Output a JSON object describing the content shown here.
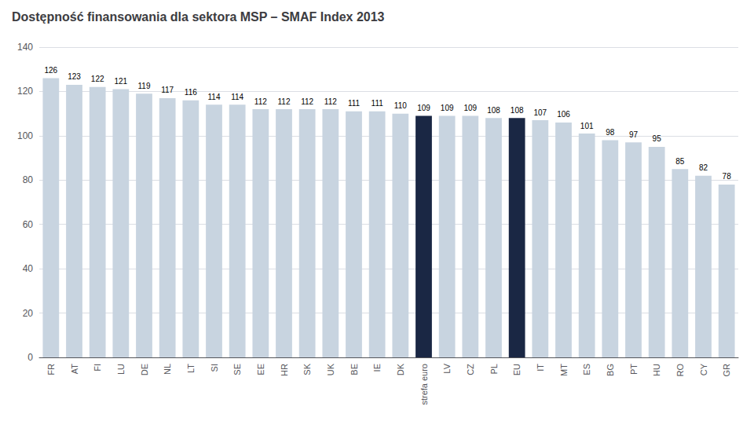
{
  "chart_data": {
    "type": "bar",
    "title": "Dostępność finansowania dla sektora MSP – SMAF Index 2013",
    "categories": [
      "FR",
      "AT",
      "FI",
      "LU",
      "DE",
      "NL",
      "LT",
      "SI",
      "SE",
      "EE",
      "HR",
      "SK",
      "UK",
      "BE",
      "IE",
      "DK",
      "strefa euro",
      "LV",
      "CZ",
      "PL",
      "EU",
      "IT",
      "MT",
      "ES",
      "BG",
      "PT",
      "HU",
      "RO",
      "CY",
      "GR"
    ],
    "values": [
      126,
      123,
      122,
      121,
      119,
      117,
      116,
      114,
      114,
      112,
      112,
      112,
      112,
      111,
      111,
      110,
      109,
      109,
      109,
      108,
      108,
      107,
      106,
      101,
      98,
      97,
      95,
      85,
      82,
      78
    ],
    "colors": [
      "#c8d4e0",
      "#c8d4e0",
      "#c8d4e0",
      "#c8d4e0",
      "#c8d4e0",
      "#c8d4e0",
      "#c8d4e0",
      "#c8d4e0",
      "#c8d4e0",
      "#c8d4e0",
      "#c8d4e0",
      "#c8d4e0",
      "#c8d4e0",
      "#c8d4e0",
      "#c8d4e0",
      "#c8d4e0",
      "#1a2744",
      "#c8d4e0",
      "#c8d4e0",
      "#c8d4e0",
      "#1a2744",
      "#c8d4e0",
      "#c8d4e0",
      "#c8d4e0",
      "#c8d4e0",
      "#c8d4e0",
      "#c8d4e0",
      "#c8d4e0",
      "#c8d4e0",
      "#c8d4e0"
    ],
    "ylim": [
      0,
      140
    ],
    "yticks": [
      0,
      20,
      40,
      60,
      80,
      100,
      120,
      140
    ],
    "grid": true,
    "data_labels": true
  }
}
